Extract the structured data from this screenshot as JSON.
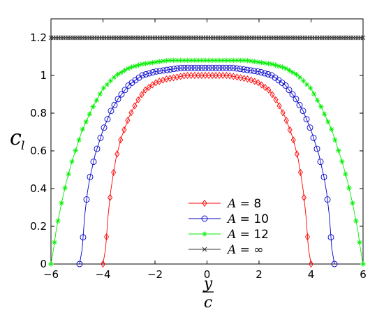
{
  "chart_data": {
    "type": "line",
    "title": "",
    "xlabel": "y",
    "xlabel_denominator": "c",
    "ylabel": "c",
    "ylabel_subscript": "l",
    "xlim": [
      -6,
      6
    ],
    "ylim": [
      0,
      1.3
    ],
    "x_ticks": [
      "−6",
      "−4",
      "−2",
      "0",
      "2",
      "4",
      "6"
    ],
    "x_tick_values": [
      -6,
      -4,
      -2,
      0,
      2,
      4,
      6
    ],
    "y_ticks": [
      "0",
      "0.2",
      "0.4",
      "0.6",
      "0.8",
      "1",
      "1.2"
    ],
    "y_tick_values": [
      0,
      0.2,
      0.4,
      0.6,
      0.8,
      1.0,
      1.2
    ],
    "grid": false,
    "legend_position": "bottom-center",
    "series": [
      {
        "name": "A = 8",
        "legend_var": "A",
        "legend_value": "8",
        "color": "#ff0000",
        "marker": "diamond",
        "x": [
          -4.0,
          -3.9,
          -3.8,
          -3.7,
          -3.6,
          -3.5,
          -3.3,
          -3.0,
          -2.7,
          -2.4,
          -2.0,
          -1.6,
          -1.2,
          -0.8,
          -0.4,
          0.0,
          0.4,
          0.8,
          1.2,
          1.6,
          2.0,
          2.4,
          2.7,
          3.0,
          3.3,
          3.5,
          3.6,
          3.7,
          3.8,
          3.9,
          4.0
        ],
        "y": [
          0.0,
          0.08,
          0.26,
          0.39,
          0.48,
          0.56,
          0.67,
          0.78,
          0.86,
          0.92,
          0.96,
          0.98,
          0.99,
          1.0,
          1.0,
          1.0,
          1.0,
          1.0,
          0.99,
          0.98,
          0.96,
          0.92,
          0.86,
          0.78,
          0.67,
          0.56,
          0.48,
          0.39,
          0.26,
          0.08,
          0.0
        ]
      },
      {
        "name": "A = 10",
        "legend_var": "A",
        "legend_value": "10",
        "color": "#0000cc",
        "marker": "circle",
        "x": [
          -4.9,
          -4.8,
          -4.7,
          -4.6,
          -4.5,
          -4.3,
          -4.0,
          -3.7,
          -3.4,
          -3.0,
          -2.5,
          -2.0,
          -1.5,
          -1.0,
          -0.5,
          0.0,
          0.5,
          1.0,
          1.5,
          2.0,
          2.5,
          3.0,
          3.4,
          3.7,
          4.0,
          4.3,
          4.5,
          4.6,
          4.7,
          4.8,
          4.9
        ],
        "y": [
          0.0,
          0.08,
          0.26,
          0.38,
          0.46,
          0.58,
          0.71,
          0.81,
          0.88,
          0.95,
          1.0,
          1.02,
          1.03,
          1.04,
          1.04,
          1.04,
          1.04,
          1.04,
          1.03,
          1.02,
          1.0,
          0.95,
          0.88,
          0.81,
          0.71,
          0.58,
          0.46,
          0.38,
          0.26,
          0.08,
          0.0
        ]
      },
      {
        "name": "A = 12",
        "legend_var": "A",
        "legend_value": "12",
        "color": "#00ee00",
        "marker": "star",
        "x": [
          -6.0,
          -5.9,
          -5.8,
          -5.6,
          -5.4,
          -5.2,
          -4.8,
          -4.4,
          -4.0,
          -3.5,
          -3.0,
          -2.5,
          -2.0,
          -1.5,
          -1.0,
          -0.5,
          0.0,
          0.5,
          1.0,
          1.5,
          2.0,
          2.5,
          3.0,
          3.5,
          4.0,
          4.4,
          4.8,
          5.2,
          5.4,
          5.6,
          5.8,
          5.9,
          6.0
        ],
        "y": [
          0.0,
          0.08,
          0.18,
          0.32,
          0.44,
          0.54,
          0.71,
          0.83,
          0.93,
          1.0,
          1.04,
          1.06,
          1.07,
          1.08,
          1.08,
          1.08,
          1.08,
          1.08,
          1.08,
          1.08,
          1.07,
          1.06,
          1.04,
          1.0,
          0.93,
          0.83,
          0.71,
          0.54,
          0.44,
          0.32,
          0.18,
          0.08,
          0.0
        ]
      },
      {
        "name": "A = ∞",
        "legend_var": "A",
        "legend_value": "∞",
        "color": "#333333",
        "marker": "x",
        "x": [
          -6.0,
          6.0
        ],
        "y": [
          1.2,
          1.2
        ]
      }
    ]
  }
}
